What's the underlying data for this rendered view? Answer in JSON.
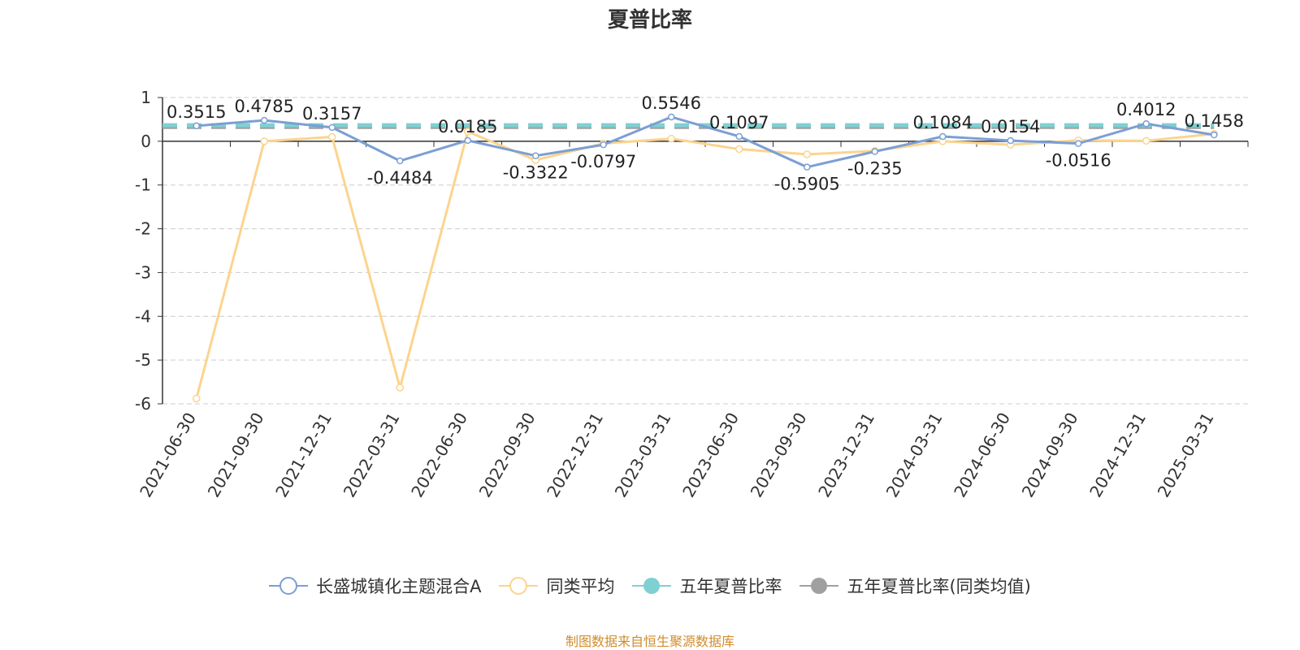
{
  "chart_data": {
    "type": "line",
    "title": "夏普比率",
    "categories": [
      "2021-06-30",
      "2021-09-30",
      "2021-12-31",
      "2022-03-31",
      "2022-06-30",
      "2022-09-30",
      "2022-12-31",
      "2023-03-31",
      "2023-06-30",
      "2023-09-30",
      "2023-12-31",
      "2024-03-31",
      "2024-06-30",
      "2024-09-30",
      "2024-12-31",
      "2025-03-31"
    ],
    "yticks": [
      "1",
      "0",
      "-1",
      "-2",
      "-3",
      "-4",
      "-5",
      "-6"
    ],
    "ylim": [
      -6,
      1
    ],
    "grid": true,
    "legend_position": "bottom",
    "series": [
      {
        "name": "长盛城镇化主题混合A",
        "color": "#7b9fd4",
        "style": "line",
        "values": [
          0.3515,
          0.4785,
          0.3157,
          -0.4484,
          0.0185,
          -0.3322,
          -0.0797,
          0.5546,
          0.1097,
          -0.5905,
          -0.235,
          0.1084,
          0.0154,
          -0.0516,
          0.4012,
          0.1458
        ],
        "labels": [
          "0.3515",
          "0.4785",
          "0.3157",
          "-0.4484",
          "0.0185",
          "-0.3322",
          "-0.0797",
          "0.5546",
          "0.1097",
          "-0.5905",
          "-0.235",
          "0.1084",
          "0.0154",
          "-0.0516",
          "0.4012",
          "0.1458"
        ]
      },
      {
        "name": "同类平均",
        "color": "#fcd48e",
        "style": "line",
        "values": [
          -5.88,
          0.0,
          0.1,
          -5.63,
          0.22,
          -0.43,
          -0.05,
          0.06,
          -0.18,
          -0.3,
          -0.22,
          0.0,
          -0.08,
          0.02,
          0.01,
          0.17
        ]
      },
      {
        "name": "五年夏普比率",
        "color": "#7fd0d1",
        "style": "dashed",
        "values_const": 0.3675
      },
      {
        "name": "五年夏普比率(同类均值)",
        "color": "#a0a0a0",
        "style": "dashed",
        "values_const": 0.3275
      }
    ]
  },
  "source": "制图数据来自恒生聚源数据库"
}
